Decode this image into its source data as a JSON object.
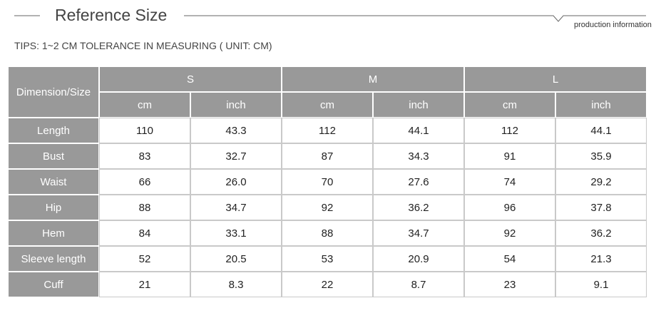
{
  "header": {
    "title": "Reference Size",
    "subtitle": "production information"
  },
  "tips": "TIPS: 1~2 CM TOLERANCE IN MEASURING ( UNIT: CM)",
  "table": {
    "corner": "Dimension/Size",
    "sizes": [
      "S",
      "M",
      "L"
    ],
    "units": [
      "cm",
      "inch",
      "cm",
      "inch",
      "cm",
      "inch"
    ],
    "rows": [
      [
        "Length",
        "110",
        "43.3",
        "112",
        "44.1",
        "112",
        "44.1"
      ],
      [
        "Bust",
        "83",
        "32.7",
        "87",
        "34.3",
        "91",
        "35.9"
      ],
      [
        "Waist",
        "66",
        "26.0",
        "70",
        "27.6",
        "74",
        "29.2"
      ],
      [
        "Hip",
        "88",
        "34.7",
        "92",
        "36.2",
        "96",
        "37.8"
      ],
      [
        "Hem",
        "84",
        "33.1",
        "88",
        "34.7",
        "92",
        "36.2"
      ],
      [
        "Sleeve length",
        "52",
        "20.5",
        "53",
        "20.9",
        "54",
        "21.3"
      ],
      [
        "Cuff",
        "21",
        "8.3",
        "22",
        "8.7",
        "23",
        "9.1"
      ]
    ]
  }
}
